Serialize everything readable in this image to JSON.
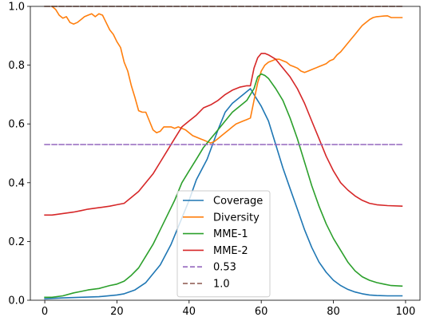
{
  "chart_data": {
    "type": "line",
    "title": "",
    "xlabel": "",
    "ylabel": "",
    "xlim": [
      -4,
      104
    ],
    "ylim": [
      0.0,
      1.0
    ],
    "xticks": [
      0,
      20,
      40,
      60,
      80,
      100
    ],
    "yticks": [
      0.0,
      0.2,
      0.4,
      0.6,
      0.8,
      1.0
    ],
    "xtick_labels": [
      "0",
      "20",
      "40",
      "60",
      "80",
      "100"
    ],
    "ytick_labels": [
      "0.0",
      "0.2",
      "0.4",
      "0.6",
      "0.8",
      "1.0"
    ],
    "grid": false,
    "legend_position": "lower-center",
    "series": [
      {
        "name": "Coverage",
        "color": "#1f77b4",
        "style": "solid",
        "x": [
          0,
          5,
          10,
          15,
          20,
          22,
          25,
          28,
          30,
          32,
          35,
          38,
          40,
          42,
          45,
          48,
          50,
          52,
          55,
          57,
          58,
          60,
          62,
          64,
          66,
          68,
          70,
          72,
          74,
          76,
          78,
          80,
          82,
          84,
          86,
          88,
          90,
          92,
          95,
          99
        ],
        "y": [
          0.005,
          0.008,
          0.01,
          0.012,
          0.018,
          0.022,
          0.035,
          0.06,
          0.09,
          0.12,
          0.19,
          0.28,
          0.34,
          0.41,
          0.48,
          0.58,
          0.64,
          0.67,
          0.7,
          0.72,
          0.7,
          0.66,
          0.61,
          0.53,
          0.45,
          0.38,
          0.31,
          0.24,
          0.18,
          0.13,
          0.095,
          0.068,
          0.05,
          0.037,
          0.028,
          0.022,
          0.018,
          0.016,
          0.015,
          0.015
        ]
      },
      {
        "name": "Diversity",
        "color": "#ff7f0e",
        "style": "solid",
        "x": [
          2,
          3,
          4,
          5,
          6,
          7,
          8,
          9,
          10,
          11,
          12,
          13,
          14,
          15,
          16,
          17,
          18,
          19,
          20,
          21,
          22,
          23,
          24,
          25,
          26,
          27,
          28,
          29,
          30,
          31,
          32,
          33,
          34,
          35,
          36,
          37,
          38,
          39,
          40,
          41,
          42,
          43,
          44,
          45,
          46,
          47,
          48,
          49,
          50,
          51,
          52,
          53,
          54,
          55,
          56,
          57,
          58,
          59,
          60,
          61,
          62,
          63,
          64,
          65,
          66,
          67,
          68,
          69,
          70,
          71,
          72,
          73,
          74,
          75,
          76,
          77,
          78,
          79,
          80,
          81,
          82,
          83,
          84,
          85,
          86,
          87,
          88,
          89,
          90,
          91,
          92,
          93,
          94,
          95,
          96,
          97,
          98,
          99
        ],
        "y": [
          1.0,
          0.99,
          0.97,
          0.96,
          0.965,
          0.945,
          0.94,
          0.945,
          0.955,
          0.965,
          0.97,
          0.975,
          0.965,
          0.975,
          0.97,
          0.945,
          0.92,
          0.905,
          0.88,
          0.86,
          0.81,
          0.78,
          0.73,
          0.69,
          0.645,
          0.64,
          0.64,
          0.61,
          0.58,
          0.57,
          0.575,
          0.59,
          0.59,
          0.59,
          0.585,
          0.59,
          0.585,
          0.58,
          0.57,
          0.56,
          0.555,
          0.55,
          0.545,
          0.54,
          0.535,
          0.54,
          0.55,
          0.56,
          0.57,
          0.58,
          0.59,
          0.6,
          0.605,
          0.61,
          0.615,
          0.62,
          0.68,
          0.74,
          0.78,
          0.8,
          0.81,
          0.815,
          0.82,
          0.82,
          0.815,
          0.81,
          0.8,
          0.795,
          0.79,
          0.78,
          0.775,
          0.78,
          0.785,
          0.79,
          0.795,
          0.8,
          0.805,
          0.815,
          0.82,
          0.835,
          0.845,
          0.86,
          0.875,
          0.89,
          0.905,
          0.92,
          0.935,
          0.945,
          0.955,
          0.962,
          0.965,
          0.966,
          0.967,
          0.968,
          0.962,
          0.962,
          0.962,
          0.962
        ]
      },
      {
        "name": "MME-1",
        "color": "#2ca02c",
        "style": "solid",
        "x": [
          0,
          2,
          5,
          8,
          10,
          12,
          15,
          18,
          20,
          22,
          24,
          26,
          28,
          30,
          32,
          34,
          36,
          38,
          40,
          42,
          44,
          46,
          48,
          50,
          52,
          54,
          56,
          58,
          59,
          60,
          61,
          62,
          64,
          66,
          68,
          70,
          72,
          74,
          76,
          78,
          80,
          82,
          84,
          86,
          88,
          90,
          92,
          94,
          96,
          99
        ],
        "y": [
          0.01,
          0.01,
          0.015,
          0.025,
          0.03,
          0.035,
          0.04,
          0.05,
          0.055,
          0.065,
          0.085,
          0.11,
          0.15,
          0.19,
          0.24,
          0.29,
          0.34,
          0.4,
          0.44,
          0.48,
          0.52,
          0.55,
          0.58,
          0.61,
          0.64,
          0.66,
          0.68,
          0.72,
          0.76,
          0.77,
          0.765,
          0.755,
          0.72,
          0.68,
          0.62,
          0.55,
          0.47,
          0.39,
          0.32,
          0.26,
          0.21,
          0.17,
          0.13,
          0.1,
          0.08,
          0.068,
          0.06,
          0.055,
          0.05,
          0.048
        ]
      },
      {
        "name": "MME-2",
        "color": "#d62728",
        "style": "solid",
        "x": [
          0,
          2,
          5,
          8,
          10,
          12,
          15,
          18,
          20,
          22,
          24,
          26,
          28,
          30,
          32,
          34,
          36,
          38,
          40,
          42,
          44,
          46,
          48,
          50,
          52,
          54,
          56,
          57,
          58,
          59,
          60,
          61,
          62,
          64,
          66,
          68,
          70,
          72,
          74,
          76,
          78,
          80,
          82,
          84,
          86,
          88,
          90,
          92,
          95,
          99
        ],
        "y": [
          0.29,
          0.29,
          0.295,
          0.3,
          0.305,
          0.31,
          0.315,
          0.32,
          0.325,
          0.33,
          0.35,
          0.37,
          0.4,
          0.43,
          0.47,
          0.51,
          0.55,
          0.59,
          0.61,
          0.63,
          0.655,
          0.665,
          0.68,
          0.7,
          0.715,
          0.725,
          0.73,
          0.73,
          0.79,
          0.825,
          0.84,
          0.84,
          0.835,
          0.82,
          0.79,
          0.76,
          0.72,
          0.67,
          0.61,
          0.55,
          0.49,
          0.44,
          0.4,
          0.375,
          0.355,
          0.34,
          0.33,
          0.325,
          0.322,
          0.32
        ]
      },
      {
        "name": "0.53",
        "color": "#9467bd",
        "style": "dashed",
        "x": [
          0,
          99
        ],
        "y": [
          0.53,
          0.53
        ]
      },
      {
        "name": "1.0",
        "color": "#8c564b",
        "style": "dashed",
        "x": [
          0,
          99
        ],
        "y": [
          1.0,
          1.0
        ]
      }
    ]
  }
}
